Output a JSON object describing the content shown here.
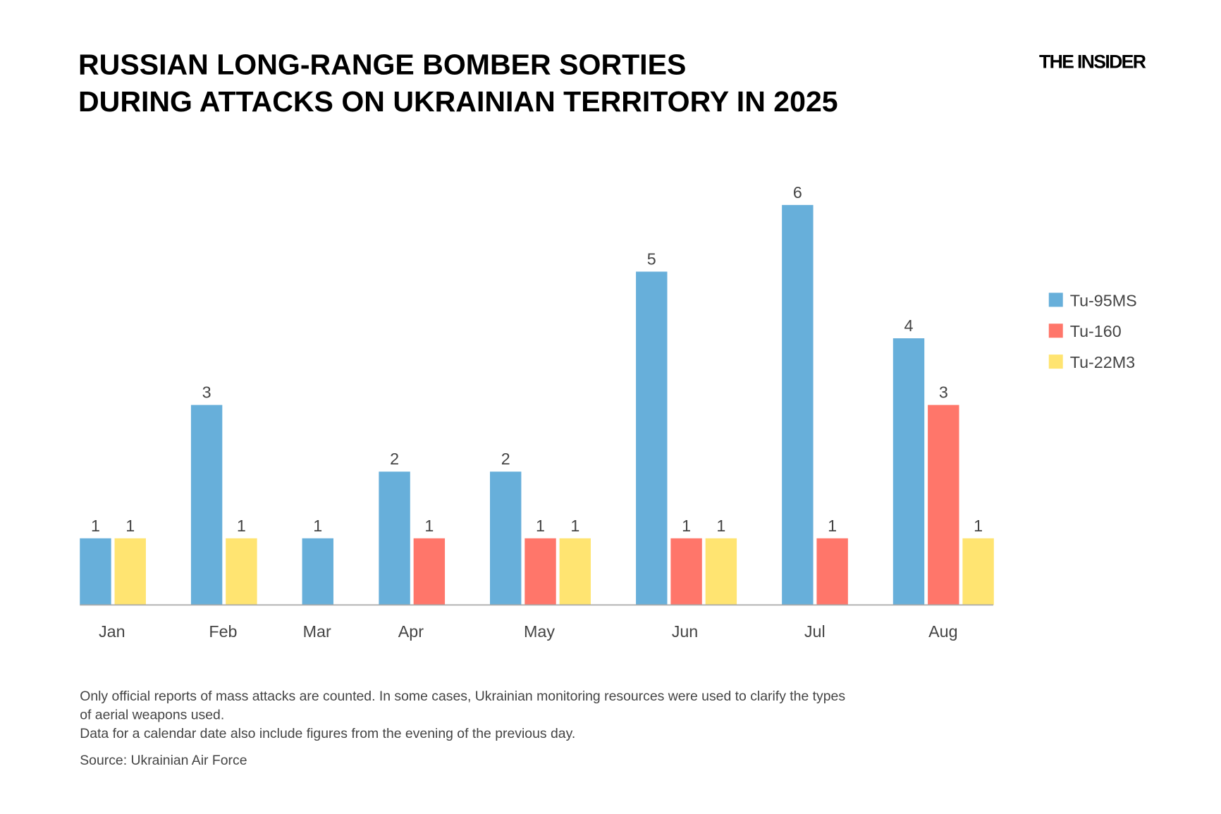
{
  "logo": "THE INSIDER",
  "chart_data": {
    "type": "bar",
    "title": [
      "RUSSIAN LONG-RANGE BOMBER SORTIES",
      "DURING ATTACKS ON UKRAINIAN TERRITORY IN 2025"
    ],
    "categories": [
      "Jan",
      "Feb",
      "Mar",
      "Apr",
      "May",
      "Jun",
      "Jul",
      "Aug"
    ],
    "series": [
      {
        "name": "Tu-95MS",
        "color": "#67AFDA",
        "values": [
          1,
          3,
          1,
          2,
          2,
          5,
          6,
          4
        ]
      },
      {
        "name": "Tu-160",
        "color": "#FF766A",
        "values": [
          null,
          null,
          null,
          1,
          1,
          1,
          1,
          3
        ]
      },
      {
        "name": "Tu-22M3",
        "color": "#FFE471",
        "values": [
          1,
          1,
          null,
          null,
          1,
          1,
          null,
          1
        ]
      }
    ],
    "ylim": [
      0,
      6
    ],
    "grid": false,
    "data_labels": true,
    "legend_position": "right",
    "notes": [
      "Only official reports of mass attacks are counted. In some cases, Ukrainian monitoring resources were used to clarify the types",
      "of aerial weapons used.",
      "Data for a calendar date also include figures from the evening of the previous day."
    ],
    "source": "Source: Ukrainian Air Force"
  }
}
